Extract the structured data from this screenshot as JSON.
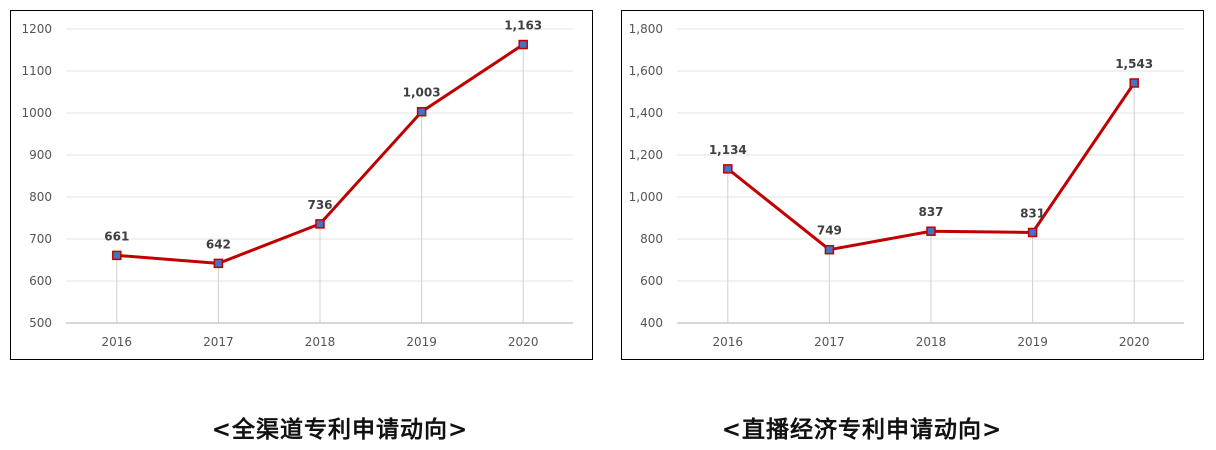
{
  "chart_data": [
    {
      "type": "line",
      "categories": [
        "2016",
        "2017",
        "2018",
        "2019",
        "2020"
      ],
      "values": [
        661,
        642,
        736,
        1003,
        1163
      ],
      "data_labels": [
        "661",
        "642",
        "736",
        "1,003",
        "1,163"
      ],
      "y_ticks": [
        "500",
        "600",
        "700",
        "800",
        "900",
        "1000",
        "1100",
        "1200"
      ],
      "ylim": [
        500,
        1200
      ],
      "grid": true,
      "line_color": "#C00000",
      "marker_color": "#4472C4",
      "caption": "<全渠道专利申请动向>"
    },
    {
      "type": "line",
      "categories": [
        "2016",
        "2017",
        "2018",
        "2019",
        "2020"
      ],
      "values": [
        1134,
        749,
        837,
        831,
        1543
      ],
      "data_labels": [
        "1,134",
        "749",
        "837",
        "831",
        "1,543"
      ],
      "y_ticks": [
        "400",
        "600",
        "800",
        "1,000",
        "1,200",
        "1,400",
        "1,600",
        "1,800"
      ],
      "ylim": [
        400,
        1800
      ],
      "grid": true,
      "line_color": "#C00000",
      "marker_color": "#4472C4",
      "caption": "<直播经济专利申请动向>"
    }
  ]
}
